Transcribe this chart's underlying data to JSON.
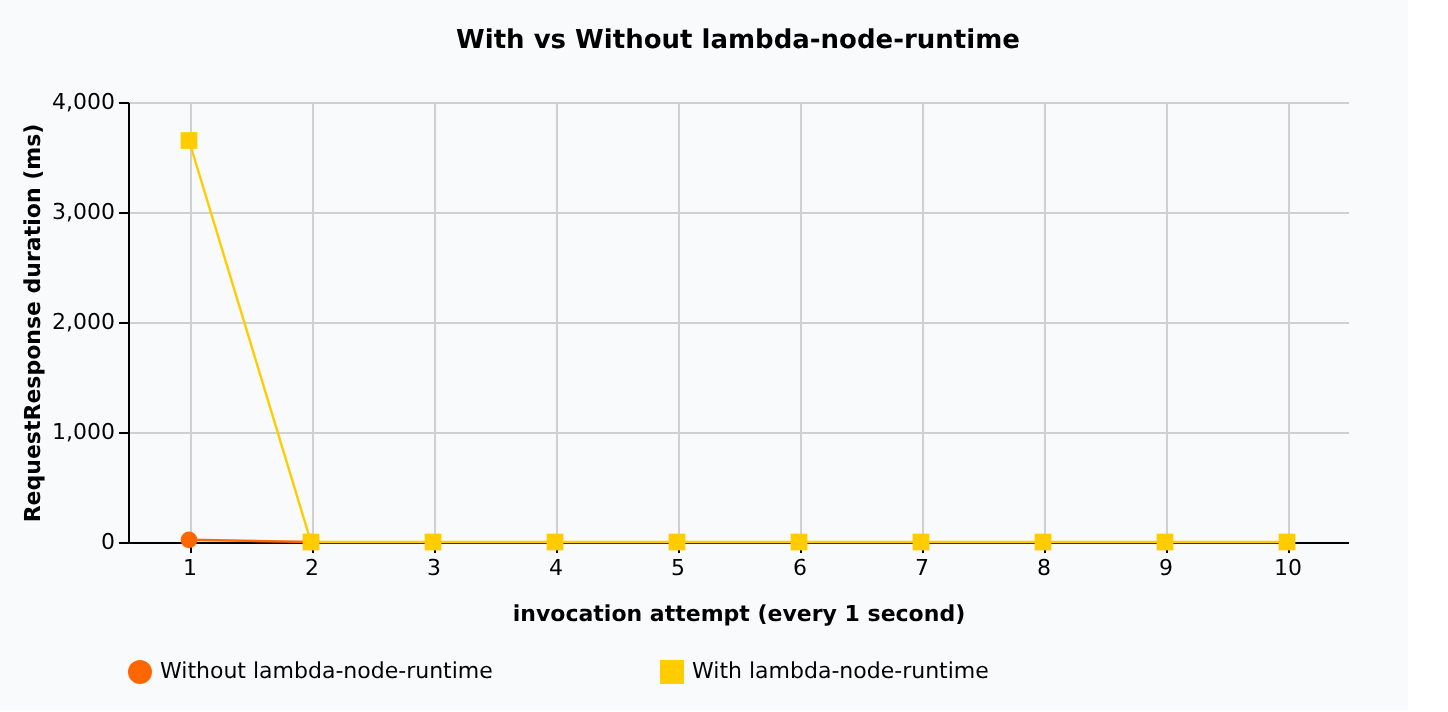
{
  "chart_data": {
    "type": "line",
    "title": "With vs Without lambda-node-runtime",
    "xlabel": "invocation attempt (every 1 second)",
    "ylabel": "RequestResponse duration (ms)",
    "categories": [
      "1",
      "2",
      "3",
      "4",
      "5",
      "6",
      "7",
      "8",
      "9",
      "10"
    ],
    "series": [
      {
        "name": "Without lambda-node-runtime",
        "color": "#ff6600",
        "marker": "circle",
        "values": [
          20,
          0,
          null,
          null,
          null,
          null,
          null,
          null,
          null,
          null
        ]
      },
      {
        "name": "With lambda-node-runtime",
        "color": "#ffcc00",
        "marker": "square",
        "values": [
          3650,
          0,
          0,
          0,
          0,
          0,
          0,
          0,
          0,
          0
        ]
      }
    ],
    "ylim": [
      0,
      4000
    ],
    "yticks": [
      0,
      {
        "value": 1000,
        "label": "1,000"
      },
      {
        "value": 2000,
        "label": "2,000"
      },
      {
        "value": 3000,
        "label": "3,000"
      },
      {
        "value": 4000,
        "label": "4,000"
      }
    ],
    "line_style": "solid",
    "grid": true,
    "legend": "bottom"
  }
}
